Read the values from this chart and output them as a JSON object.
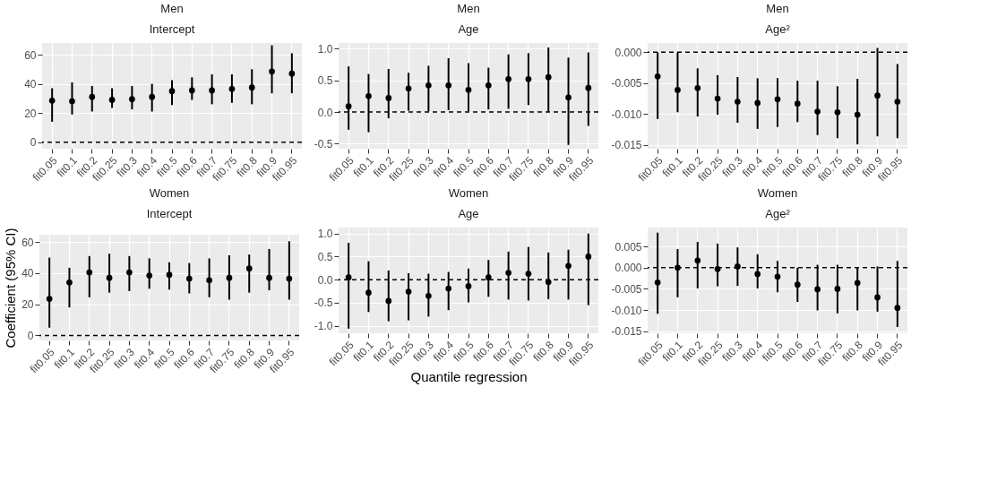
{
  "chart_data": [
    {
      "type": "scatter",
      "title": "Men",
      "subtitle": "Intercept",
      "categories": [
        "fit0.05",
        "fit0.1",
        "fit0.2",
        "fit0.25",
        "fit0.3",
        "fit0.4",
        "fit0.5",
        "fit0.6",
        "fit0.7",
        "fit0.75",
        "fit0.8",
        "fit0.9",
        "fit0.95"
      ],
      "color": "#000000",
      "marker": "circle",
      "grid": true,
      "values": [
        28.5,
        28,
        31,
        29,
        29.5,
        31,
        35,
        35.5,
        35.5,
        36.5,
        37.5,
        48.5,
        47
      ],
      "errors": [
        [
          14,
          37
        ],
        [
          19,
          41
        ],
        [
          21,
          38.5
        ],
        [
          23.5,
          37
        ],
        [
          22.5,
          38.5
        ],
        [
          21,
          40
        ],
        [
          25.5,
          42.5
        ],
        [
          29,
          44.5
        ],
        [
          26,
          46.5
        ],
        [
          27,
          46.5
        ],
        [
          26,
          50
        ],
        [
          33.5,
          66.5
        ],
        [
          33.5,
          61
        ]
      ],
      "ylim": [
        -4.5,
        68
      ],
      "yticks": [
        0,
        20,
        40,
        60
      ],
      "ref_lines": [
        {
          "axis": "y",
          "value": 0,
          "line_style": "dashed"
        }
      ]
    },
    {
      "type": "scatter",
      "title": "Men",
      "subtitle": "Age",
      "categories": [
        "fit0.05",
        "fit0.1",
        "fit0.2",
        "fit0.25",
        "fit0.3",
        "fit0.4",
        "fit0.5",
        "fit0.6",
        "fit0.7",
        "fit0.75",
        "fit0.8",
        "fit0.9",
        "fit0.95"
      ],
      "color": "#000000",
      "marker": "circle",
      "grid": true,
      "values": [
        0.09,
        0.25,
        0.22,
        0.37,
        0.42,
        0.42,
        0.35,
        0.42,
        0.52,
        0.52,
        0.55,
        0.23,
        0.38
      ],
      "errors": [
        [
          -0.28,
          0.72
        ],
        [
          -0.32,
          0.6
        ],
        [
          -0.1,
          0.68
        ],
        [
          0.02,
          0.62
        ],
        [
          0.01,
          0.73
        ],
        [
          0.03,
          0.85
        ],
        [
          0.01,
          0.77
        ],
        [
          0.04,
          0.7
        ],
        [
          0.05,
          0.91
        ],
        [
          0.11,
          0.93
        ],
        [
          0,
          1.02
        ],
        [
          -0.52,
          0.86
        ],
        [
          -0.22,
          0.94
        ]
      ],
      "ylim": [
        -0.58,
        1.09
      ],
      "yticks": [
        -0.5,
        {
          "value": 0,
          "label": "0.0"
        },
        0.5,
        {
          "value": 1,
          "label": "1.0"
        }
      ],
      "ref_lines": [
        {
          "axis": "y",
          "value": 0,
          "line_style": "dashed"
        }
      ]
    },
    {
      "type": "scatter",
      "title": "Men",
      "subtitle": "Age²",
      "categories": [
        "fit0.05",
        "fit0.1",
        "fit0.2",
        "fit0.25",
        "fit0.3",
        "fit0.4",
        "fit0.5",
        "fit0.6",
        "fit0.7",
        "fit0.75",
        "fit0.8",
        "fit0.9",
        "fit0.95"
      ],
      "color": "#000000",
      "marker": "circle",
      "grid": true,
      "values": [
        -0.0039,
        -0.0061,
        -0.0058,
        -0.0075,
        -0.008,
        -0.0082,
        -0.0076,
        -0.0083,
        -0.0096,
        -0.0097,
        -0.0101,
        -0.007,
        -0.008
      ],
      "errors": [
        [
          -0.0108,
          0
        ],
        [
          -0.0097,
          0
        ],
        [
          -0.0104,
          -0.0026
        ],
        [
          -0.0101,
          -0.0037
        ],
        [
          -0.0114,
          -0.004
        ],
        [
          -0.0124,
          -0.0042
        ],
        [
          -0.0121,
          -0.0042
        ],
        [
          -0.0113,
          -0.0046
        ],
        [
          -0.0134,
          -0.0046
        ],
        [
          -0.0139,
          -0.0055
        ],
        [
          -0.0149,
          -0.0043
        ],
        [
          -0.0136,
          0.0007
        ],
        [
          -0.0139,
          -0.0019
        ]
      ],
      "ylim": [
        -0.0156,
        0.0015
      ],
      "yticks": [
        {
          "value": -0.015,
          "label": "-0.015"
        },
        {
          "value": -0.01,
          "label": "-0.010"
        },
        {
          "value": -0.005,
          "label": "-0.005"
        },
        {
          "value": 0,
          "label": "0.000"
        }
      ],
      "ref_lines": [
        {
          "axis": "y",
          "value": 0,
          "line_style": "dashed"
        }
      ]
    },
    {
      "type": "scatter",
      "title": "Women",
      "subtitle": "Intercept",
      "ylabel": "Coefficient (95% CI)",
      "categories": [
        "fit0.05",
        "fit0.1",
        "fit0.2",
        "fit0.25",
        "fit0.3",
        "fit0.4",
        "fit0.5",
        "fit0.6",
        "fit0.7",
        "fit0.75",
        "fit0.8",
        "fit0.9",
        "fit0.95"
      ],
      "color": "#000000",
      "marker": "circle",
      "grid": true,
      "values": [
        23.5,
        34,
        40.5,
        37,
        40.5,
        38.5,
        39,
        36.5,
        35.5,
        37,
        43,
        37,
        36.5
      ],
      "errors": [
        [
          5,
          50
        ],
        [
          18,
          43.5
        ],
        [
          24.5,
          51
        ],
        [
          27.5,
          52.5
        ],
        [
          28.5,
          51
        ],
        [
          30,
          49.5
        ],
        [
          29.5,
          47
        ],
        [
          27,
          46.5
        ],
        [
          24.5,
          49.5
        ],
        [
          23,
          51.5
        ],
        [
          27.5,
          52
        ],
        [
          29,
          55.5
        ],
        [
          23,
          60.5
        ]
      ],
      "ylim": [
        -3.2,
        64.7
      ],
      "yticks": [
        0,
        20,
        40,
        60
      ],
      "ref_lines": [
        {
          "axis": "y",
          "value": 0,
          "line_style": "dashed"
        }
      ]
    },
    {
      "type": "scatter",
      "title": "Women",
      "subtitle": "Age",
      "xlabel": "Quantile regression",
      "categories": [
        "fit0.05",
        "fit0.1",
        "fit0.2",
        "fit0.25",
        "fit0.3",
        "fit0.4",
        "fit0.5",
        "fit0.6",
        "fit0.7",
        "fit0.75",
        "fit0.8",
        "fit0.9",
        "fit0.95"
      ],
      "color": "#000000",
      "marker": "circle",
      "grid": true,
      "values": [
        0.05,
        -0.28,
        -0.46,
        -0.26,
        -0.35,
        -0.19,
        -0.14,
        0.05,
        0.15,
        0.13,
        -0.05,
        0.3,
        0.5
      ],
      "errors": [
        [
          -1.06,
          0.8
        ],
        [
          -0.7,
          0.4
        ],
        [
          -0.9,
          0.2
        ],
        [
          -0.88,
          0.14
        ],
        [
          -0.8,
          0.13
        ],
        [
          -0.66,
          0.17
        ],
        [
          -0.49,
          0.24
        ],
        [
          -0.37,
          0.43
        ],
        [
          -0.43,
          0.61
        ],
        [
          -0.45,
          0.71
        ],
        [
          -0.42,
          0.59
        ],
        [
          -0.43,
          0.65
        ],
        [
          -0.55,
          1.0
        ]
      ],
      "ylim": [
        -1.16,
        1.13
      ],
      "yticks": [
        {
          "value": -1,
          "label": "-1.0"
        },
        -0.5,
        {
          "value": 0,
          "label": "0.0"
        },
        0.5,
        {
          "value": 1,
          "label": "1.0"
        }
      ],
      "ref_lines": [
        {
          "axis": "y",
          "value": 0,
          "line_style": "dashed"
        }
      ]
    },
    {
      "type": "scatter",
      "title": "Women",
      "subtitle": "Age²",
      "categories": [
        "fit0.05",
        "fit0.1",
        "fit0.2",
        "fit0.25",
        "fit0.3",
        "fit0.4",
        "fit0.5",
        "fit0.6",
        "fit0.7",
        "fit0.75",
        "fit0.8",
        "fit0.9",
        "fit0.95"
      ],
      "color": "#000000",
      "marker": "circle",
      "grid": true,
      "values": [
        -0.0035,
        0,
        0.0017,
        -0.0003,
        0.0003,
        -0.0015,
        -0.0021,
        -0.004,
        -0.0051,
        -0.005,
        -0.0036,
        -0.007,
        -0.0095
      ],
      "errors": [
        [
          -0.0109,
          0.0083
        ],
        [
          -0.007,
          0.0044
        ],
        [
          -0.0049,
          0.0061
        ],
        [
          -0.0044,
          0.0057
        ],
        [
          -0.0043,
          0.0048
        ],
        [
          -0.0049,
          0.0032
        ],
        [
          -0.0058,
          0.0016
        ],
        [
          -0.0081,
          0
        ],
        [
          -0.0101,
          0.0007
        ],
        [
          -0.0108,
          0.0007
        ],
        [
          -0.0101,
          0
        ],
        [
          -0.0104,
          0.0003
        ],
        [
          -0.014,
          0.0016
        ]
      ],
      "ylim": [
        -0.0155,
        0.0095
      ],
      "yticks": [
        {
          "value": -0.015,
          "label": "-0.015"
        },
        {
          "value": -0.01,
          "label": "-0.010"
        },
        {
          "value": -0.005,
          "label": "-0.005"
        },
        {
          "value": 0,
          "label": "0.000"
        },
        {
          "value": 0.005,
          "label": "0.005"
        }
      ],
      "ref_lines": [
        {
          "axis": "y",
          "value": 0,
          "line_style": "dashed"
        }
      ]
    }
  ]
}
